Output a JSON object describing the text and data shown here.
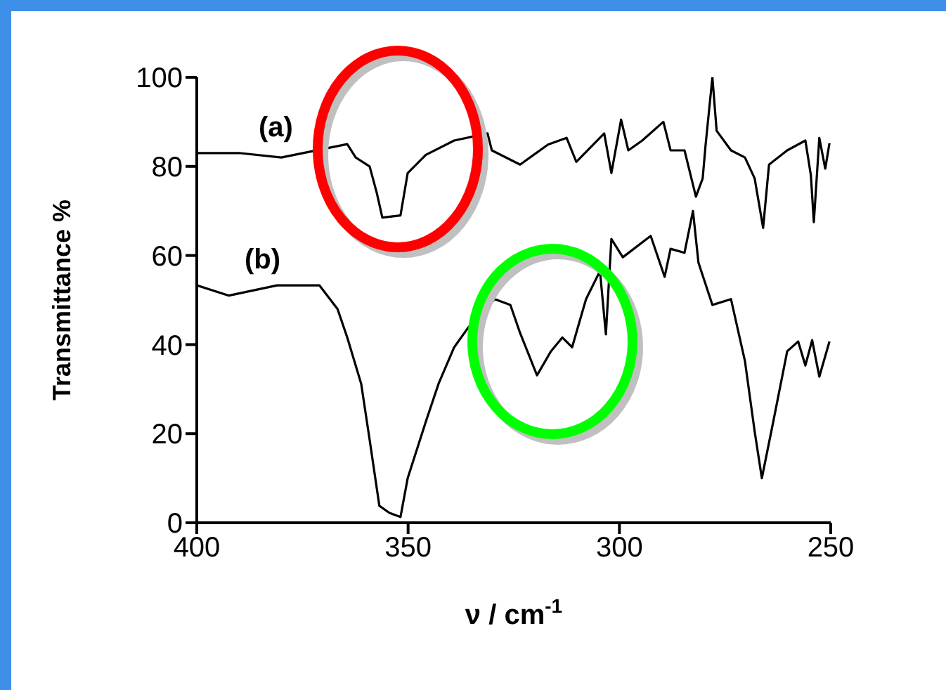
{
  "chart_data": {
    "type": "line",
    "xlabel": "ν / cm$^{-1}$",
    "ylabel": "Transmittance %",
    "xlim": [
      400,
      250
    ],
    "xticks": [
      400,
      350,
      300,
      250
    ],
    "ylim": [
      0,
      100
    ],
    "yticks": [
      0,
      20,
      40,
      60,
      80,
      100
    ],
    "grid": false,
    "legend": false,
    "marker": "none",
    "line_style": "solid",
    "series": [
      {
        "name": "(a)",
        "color": "#000000",
        "x": [
          400,
          390,
          380,
          364.4,
          362.4,
          359.1,
          357.4,
          356.1,
          351.8,
          350.1,
          345.8,
          339.1,
          331.2,
          330.2,
          323.5,
          316.9,
          312.5,
          310.2,
          303.6,
          301.9,
          299.6,
          297.9,
          294.6,
          289.6,
          287.9,
          284.6,
          281.9,
          280.3,
          279.6,
          278,
          277,
          273.6,
          270.3,
          268,
          266,
          264.6,
          260.3,
          256,
          254.7,
          254,
          252.7,
          251.3,
          250.3
        ],
        "values": [
          83,
          83,
          82,
          85,
          82,
          80,
          74,
          68.5,
          69,
          78.5,
          82.6,
          85.8,
          87.4,
          83.6,
          80.4,
          84.9,
          86.4,
          81,
          87.4,
          78.5,
          90.5,
          83.6,
          85.8,
          90,
          83.6,
          83.6,
          73.2,
          77.3,
          84.9,
          100,
          88,
          83.6,
          82,
          77.3,
          66.2,
          80.4,
          83.6,
          85.8,
          78,
          67.5,
          86.4,
          79.5,
          85.2
        ]
      },
      {
        "name": "(b)",
        "color": "#000000",
        "x": [
          400,
          392.4,
          381,
          371,
          366.7,
          364.4,
          361.1,
          359.1,
          356.8,
          354.4,
          351.8,
          350.1,
          345.8,
          342.8,
          339.1,
          335.8,
          329.5,
          325.8,
          323.5,
          319.5,
          316.2,
          313.5,
          311.2,
          307.9,
          304.6,
          303.2,
          301.9,
          299.2,
          292.6,
          289.3,
          287.9,
          284.6,
          282.6,
          281.3,
          278,
          273.6,
          270.3,
          268,
          266.3,
          263.6,
          260.3,
          257.7,
          256,
          254.4,
          252.7,
          250.3
        ],
        "values": [
          53.3,
          51,
          53.3,
          53.3,
          48,
          41.6,
          31.2,
          18.6,
          3.8,
          2.2,
          1.3,
          10,
          22.7,
          31.2,
          39.4,
          43.8,
          50.2,
          48.9,
          42.6,
          33.1,
          38.5,
          41.6,
          39.4,
          50.2,
          56.5,
          42.3,
          63.7,
          59.6,
          64.4,
          55.2,
          61.5,
          60.6,
          70,
          58.4,
          48.9,
          50.2,
          36.3,
          20.5,
          10,
          22.7,
          38.5,
          40.7,
          35.3,
          41,
          32.8,
          40.7
        ]
      }
    ]
  }
}
